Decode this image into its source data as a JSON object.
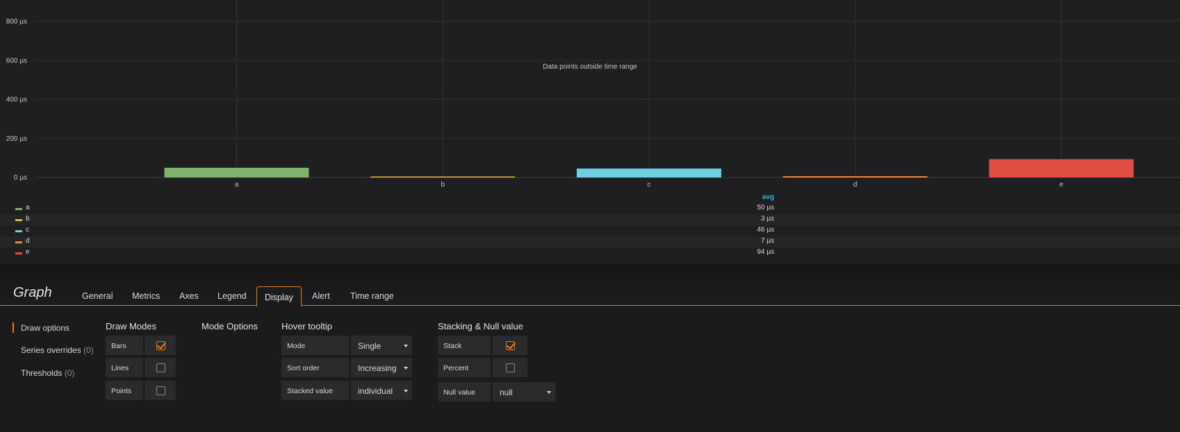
{
  "chart_data": {
    "type": "bar",
    "categories": [
      "a",
      "b",
      "c",
      "d",
      "e"
    ],
    "values": [
      50,
      3,
      46,
      7,
      94
    ],
    "colors": [
      "#7eb26d",
      "#eab839",
      "#6ed0e0",
      "#ef843c",
      "#e24d42"
    ],
    "y_ticks": [
      {
        "value": 0,
        "label": "0 µs"
      },
      {
        "value": 200,
        "label": "200 µs"
      },
      {
        "value": 400,
        "label": "400 µs"
      },
      {
        "value": 600,
        "label": "600 µs"
      },
      {
        "value": 800,
        "label": "800 µs"
      }
    ],
    "ylim": [
      0,
      880
    ],
    "unit": "µs",
    "grid": true,
    "annotation": "Data points outside time range",
    "legend": {
      "placement": "bottom",
      "column": "avg",
      "items": [
        {
          "name": "a",
          "value": "50 µs"
        },
        {
          "name": "b",
          "value": "3 µs"
        },
        {
          "name": "c",
          "value": "46 µs"
        },
        {
          "name": "d",
          "value": "7 µs"
        },
        {
          "name": "e",
          "value": "94 µs"
        }
      ]
    }
  },
  "editor": {
    "title": "Graph",
    "tabs": [
      "General",
      "Metrics",
      "Axes",
      "Legend",
      "Display",
      "Alert",
      "Time range"
    ],
    "active_tab": "Display",
    "accent": "#eb7b18",
    "sidebar": [
      {
        "label": "Draw options",
        "count": ""
      },
      {
        "label": "Series overrides",
        "count": "(0)"
      },
      {
        "label": "Thresholds",
        "count": "(0)"
      }
    ],
    "draw_modes": {
      "title": "Draw Modes",
      "bars": {
        "label": "Bars",
        "checked": true
      },
      "lines": {
        "label": "Lines",
        "checked": false
      },
      "points": {
        "label": "Points",
        "checked": false
      }
    },
    "mode_options": {
      "title": "Mode Options"
    },
    "hover_tooltip": {
      "title": "Hover tooltip",
      "mode": {
        "label": "Mode",
        "value": "Single"
      },
      "sort_order": {
        "label": "Sort order",
        "value": "Increasing"
      },
      "stacked_value": {
        "label": "Stacked value",
        "value": "individual"
      }
    },
    "stacking": {
      "title": "Stacking & Null value",
      "stack": {
        "label": "Stack",
        "checked": true
      },
      "percent": {
        "label": "Percent",
        "checked": false
      },
      "null_value": {
        "label": "Null value",
        "value": "null"
      }
    }
  }
}
